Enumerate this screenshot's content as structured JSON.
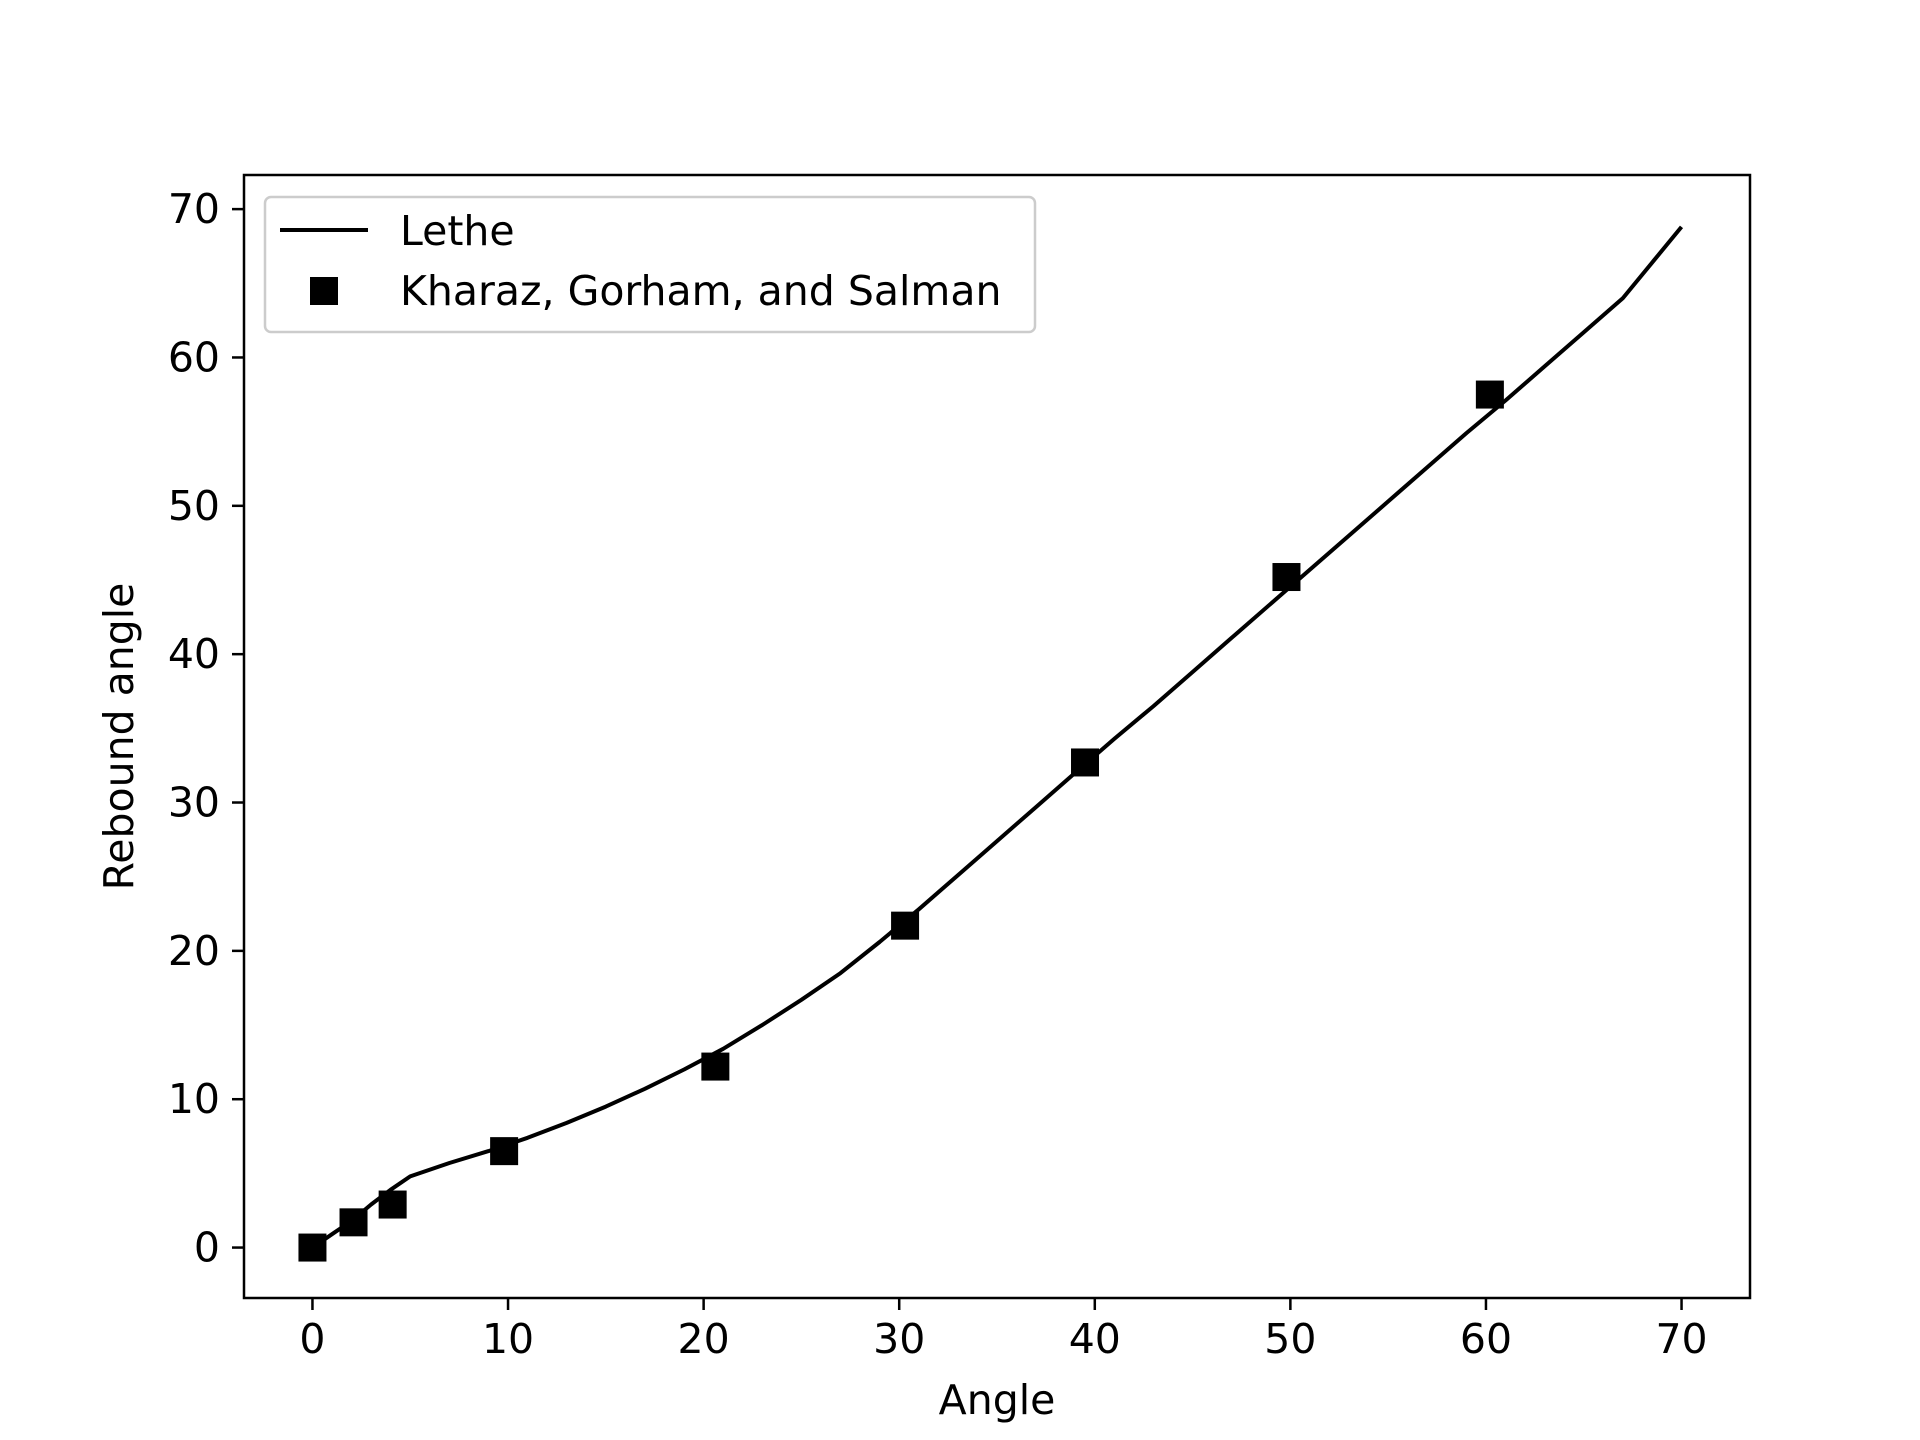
{
  "chart_data": {
    "type": "line",
    "xlabel": "Angle",
    "ylabel": "Rebound angle",
    "xlim": [
      -3.5,
      73.5
    ],
    "ylim": [
      -3.4,
      72.3
    ],
    "xticks": [
      0,
      10,
      20,
      30,
      40,
      50,
      60,
      70
    ],
    "yticks": [
      0,
      10,
      20,
      30,
      40,
      50,
      60,
      70
    ],
    "grid": false,
    "legend_position": "top-left",
    "series": [
      {
        "name": "Lethe",
        "kind": "line",
        "color": "#000000",
        "x": [
          0,
          1,
          2,
          3,
          4,
          5,
          7,
          9,
          11,
          13,
          15,
          17,
          19,
          21,
          23,
          25,
          27,
          29,
          31,
          33,
          35,
          37,
          39,
          41,
          43,
          45,
          47,
          49,
          51,
          53,
          55,
          57,
          59,
          61,
          63,
          65,
          67,
          70
        ],
        "y": [
          0,
          0.9,
          1.8,
          2.9,
          3.9,
          4.8,
          5.7,
          6.5,
          7.4,
          8.4,
          9.5,
          10.7,
          12.0,
          13.4,
          15.0,
          16.7,
          18.5,
          20.6,
          22.8,
          25.1,
          27.4,
          29.7,
          32.0,
          34.3,
          36.5,
          38.8,
          41.1,
          43.4,
          45.7,
          48.0,
          50.3,
          52.6,
          54.9,
          57.1,
          59.4,
          61.7,
          64.0,
          68.8
        ]
      },
      {
        "name": "Kharaz, Gorham, and Salman",
        "kind": "scatter",
        "marker": "square",
        "color": "#000000",
        "x": [
          0,
          2.1,
          4.1,
          9.8,
          20.6,
          30.3,
          39.5,
          49.8,
          60.2
        ],
        "y": [
          0,
          1.7,
          2.9,
          6.5,
          12.2,
          21.7,
          32.7,
          45.2,
          57.5
        ]
      }
    ]
  }
}
